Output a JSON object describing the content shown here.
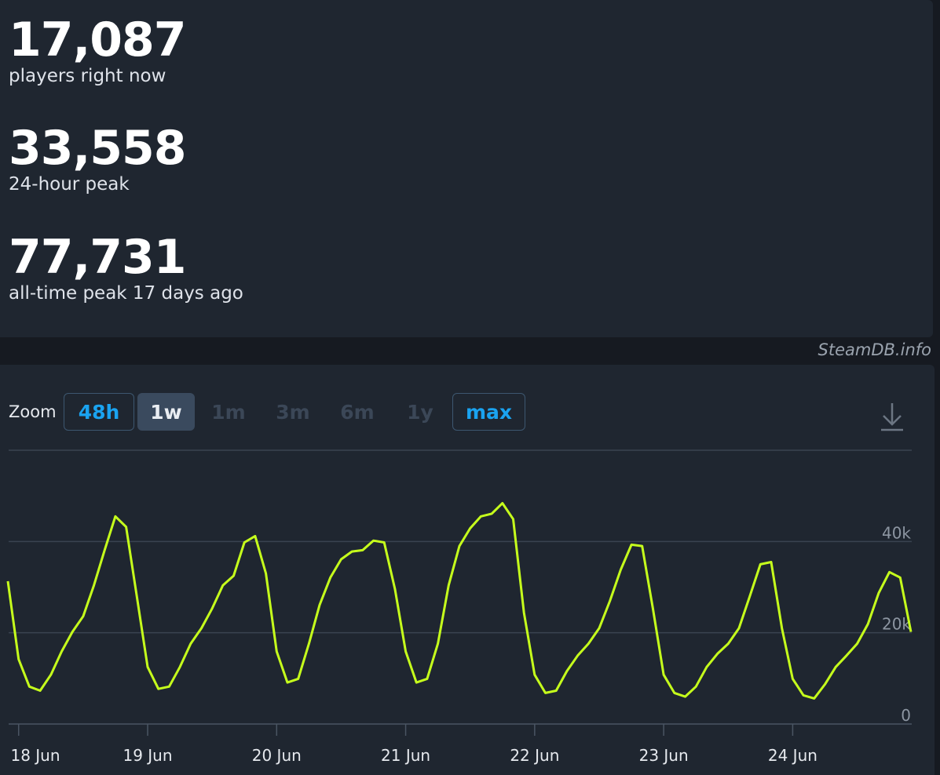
{
  "stats": [
    {
      "value": "17,087",
      "label": "players right now"
    },
    {
      "value": "33,558",
      "label": "24-hour peak"
    },
    {
      "value": "77,731",
      "label": "all-time peak 17 days ago"
    }
  ],
  "watermark": "SteamDB.info",
  "zoom": {
    "label": "Zoom",
    "options": [
      {
        "label": "48h",
        "state": "highlight"
      },
      {
        "label": "1w",
        "state": "selected"
      },
      {
        "label": "1m",
        "state": "disabled"
      },
      {
        "label": "3m",
        "state": "disabled"
      },
      {
        "label": "6m",
        "state": "disabled"
      },
      {
        "label": "1y",
        "state": "disabled"
      },
      {
        "label": "max",
        "state": "highlight"
      }
    ]
  },
  "chart_data": {
    "type": "line",
    "categories": [
      null,
      "18 Jun",
      null,
      null,
      null,
      null,
      null,
      null,
      null,
      null,
      null,
      null,
      null,
      "19 Jun",
      null,
      null,
      null,
      null,
      null,
      null,
      null,
      null,
      null,
      null,
      null,
      "20 Jun",
      null,
      null,
      null,
      null,
      null,
      null,
      null,
      null,
      null,
      null,
      null,
      "21 Jun",
      null,
      null,
      null,
      null,
      null,
      null,
      null,
      null,
      null,
      null,
      null,
      "22 Jun",
      null,
      null,
      null,
      null,
      null,
      null,
      null,
      null,
      null,
      null,
      null,
      "23 Jun",
      null,
      null,
      null,
      null,
      null,
      null,
      null,
      null,
      null,
      null,
      null,
      "24 Jun",
      null,
      null,
      null,
      null,
      null,
      null,
      null,
      null,
      null,
      null,
      null
    ],
    "values": [
      31300,
      14200,
      8200,
      7300,
      10800,
      15900,
      20200,
      23600,
      30400,
      38100,
      45500,
      43200,
      27900,
      12500,
      7700,
      8200,
      12500,
      17600,
      21000,
      25300,
      30400,
      32500,
      39800,
      41200,
      33000,
      15900,
      9100,
      9900,
      17600,
      26100,
      32100,
      36100,
      37800,
      38100,
      40200,
      39800,
      29600,
      15900,
      9100,
      9900,
      17600,
      30400,
      39000,
      42900,
      45500,
      46100,
      48400,
      44900,
      24400,
      10800,
      6800,
      7300,
      11600,
      15000,
      17600,
      21000,
      27000,
      33800,
      39300,
      39000,
      25300,
      10800,
      6800,
      6000,
      8200,
      12500,
      15400,
      17600,
      21000,
      27900,
      35000,
      35500,
      21000,
      9900,
      6300,
      5600,
      8700,
      12500,
      15000,
      17600,
      21900,
      28700,
      33300,
      32100,
      20200
    ],
    "color": "#c6ff1c",
    "ylim": [
      0,
      60000
    ],
    "yticks": [
      0,
      {
        "value": 20000,
        "label": "20k"
      },
      {
        "value": 40000,
        "label": "40k"
      }
    ],
    "grid": true
  }
}
